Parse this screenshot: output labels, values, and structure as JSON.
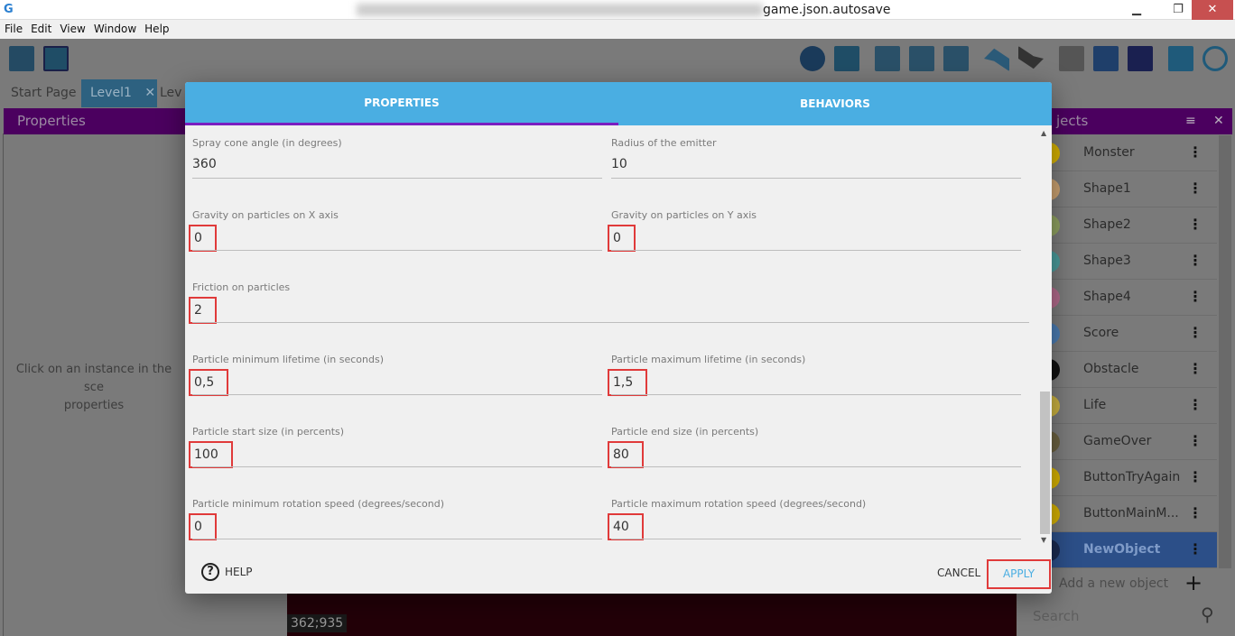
{
  "window": {
    "title": "game.json.autosave",
    "minimize": "▁",
    "restore": "❐",
    "close": "✕"
  },
  "menu": [
    "File",
    "Edit",
    "View",
    "Window",
    "Help"
  ],
  "tabs": [
    {
      "label": "Start Page"
    },
    {
      "label": "Level1",
      "close": "✕"
    },
    {
      "label": "Lev"
    }
  ],
  "left_panel": {
    "title": "Properties",
    "message_line1": "Click on an instance in the sce",
    "message_line2": "properties"
  },
  "canvas": {
    "coords": "362;935"
  },
  "right_panel": {
    "title": "jects",
    "filter_icon": "≡",
    "close_icon": "✕",
    "objects": [
      {
        "name": "Monster",
        "color": "#d4b000"
      },
      {
        "name": "Shape1",
        "color": "#c9a070"
      },
      {
        "name": "Shape2",
        "color": "#8ea060"
      },
      {
        "name": "Shape3",
        "color": "#4a9a9a"
      },
      {
        "name": "Shape4",
        "color": "#b06a8a"
      },
      {
        "name": "Score",
        "color": "#4a7ab0"
      },
      {
        "name": "Obstacle",
        "color": "#111111"
      },
      {
        "name": "Life",
        "color": "#c8b040"
      },
      {
        "name": "GameOver",
        "color": "#6a6040"
      },
      {
        "name": "ButtonTryAgain",
        "color": "#d4b000"
      },
      {
        "name": "ButtonMainM...",
        "color": "#d4b000"
      },
      {
        "name": "NewObject",
        "color": "#1a2a50",
        "selected": true
      }
    ],
    "kebab": "⋮",
    "add_label": "Add a new object",
    "add_icon": "+",
    "search_placeholder": "Search",
    "search_icon": "⚲"
  },
  "dialog": {
    "tabs": [
      {
        "label": "PROPERTIES",
        "active": true
      },
      {
        "label": "BEHAVIORS"
      }
    ],
    "fields": [
      {
        "label": "Spray cone angle (in degrees)",
        "value": "360"
      },
      {
        "label": "Radius of the emitter",
        "value": "10"
      },
      {
        "label": "Gravity on particles on X axis",
        "value": "0",
        "highlighted": true
      },
      {
        "label": "Gravity on particles on Y axis",
        "value": "0",
        "highlighted": true
      },
      {
        "label": "Friction on particles",
        "value": "2",
        "highlighted": true,
        "full_width": true
      },
      {
        "label": "Particle minimum lifetime (in seconds)",
        "value": "0,5",
        "highlighted": true
      },
      {
        "label": "Particle maximum lifetime (in seconds)",
        "value": "1,5",
        "highlighted": true
      },
      {
        "label": "Particle start size (in percents)",
        "value": "100",
        "highlighted": true
      },
      {
        "label": "Particle end size (in percents)",
        "value": "80",
        "highlighted": true
      },
      {
        "label": "Particle minimum rotation speed (degrees/second)",
        "value": "0",
        "highlighted": true
      },
      {
        "label": "Particle maximum rotation speed (degrees/second)",
        "value": "40",
        "highlighted": true
      }
    ],
    "scroll_position_percent": 80,
    "help_icon": "?",
    "help_label": "HELP",
    "cancel_label": "CANCEL",
    "apply_label": "APPLY"
  },
  "colors": {
    "accent": "#4aaee2",
    "tab_indicator": "#7b1ec0",
    "panel_header": "#4b005f",
    "highlight": "#e03a3a"
  }
}
